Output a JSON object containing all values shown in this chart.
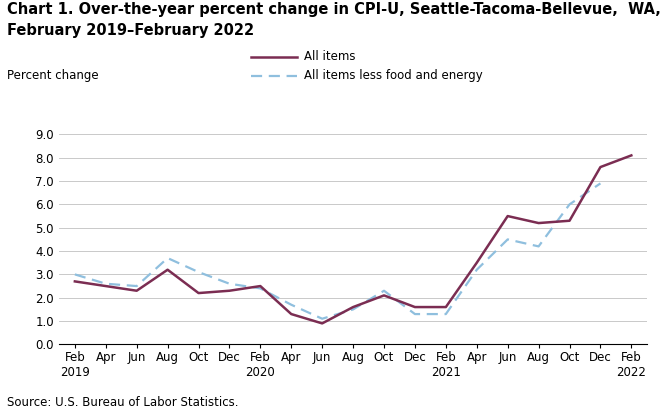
{
  "title_line1": "Chart 1. Over-the-year percent change in CPI-U, Seattle-Tacoma-Bellevue,  WA,",
  "title_line2": "February 2019–February 2022",
  "ylabel": "Percent change",
  "source": "Source: U.S. Bureau of Labor Statistics.",
  "ylim": [
    0.0,
    9.0
  ],
  "yticks": [
    0.0,
    1.0,
    2.0,
    3.0,
    4.0,
    5.0,
    6.0,
    7.0,
    8.0,
    9.0
  ],
  "x_labels": [
    "Feb\n2019",
    "Apr",
    "Jun",
    "Aug",
    "Oct",
    "Dec",
    "Feb\n2020",
    "Apr",
    "Jun",
    "Aug",
    "Oct",
    "Dec",
    "Feb\n2021",
    "Apr",
    "Jun",
    "Aug",
    "Oct",
    "Dec",
    "Feb\n2022"
  ],
  "all_items": [
    2.7,
    2.5,
    2.3,
    3.2,
    2.2,
    2.3,
    2.5,
    1.3,
    0.9,
    1.6,
    2.1,
    1.6,
    1.6,
    3.5,
    5.5,
    5.2,
    5.3,
    7.6,
    8.1
  ],
  "all_items_less": [
    3.0,
    2.6,
    2.5,
    3.7,
    3.1,
    2.6,
    2.4,
    1.7,
    1.1,
    1.5,
    2.3,
    1.3,
    1.3,
    3.2,
    4.5,
    4.2,
    6.0,
    6.9,
    null
  ],
  "color_all_items": "#7b2d52",
  "color_less": "#8fbfde",
  "legend_label_1": "All items",
  "legend_label_2": "All items less food and energy",
  "background_color": "#ffffff",
  "title_fontsize": 10.5,
  "tick_fontsize": 8.5,
  "source_fontsize": 8.5
}
